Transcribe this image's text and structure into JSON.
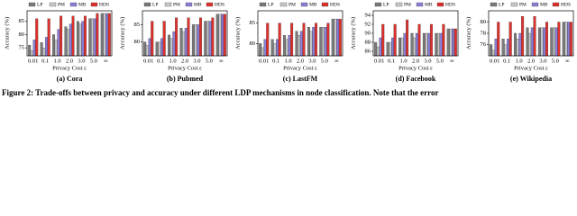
{
  "chart_data": [
    {
      "type": "bar",
      "subtitle": "(a) Cora",
      "ylabel": "Accuracy (%)",
      "xlabel": "Privacy Cost ε",
      "categories": [
        "0.01",
        "0.1",
        "1.0",
        "2.0",
        "3.0",
        "5.0",
        "∞"
      ],
      "series": [
        {
          "name": "LP",
          "color": "#7a7a7a",
          "values": [
            76,
            77,
            80,
            83,
            85,
            86,
            88
          ]
        },
        {
          "name": "PM",
          "color": "#c8c8c8",
          "values": [
            74,
            75,
            78,
            82,
            84,
            86,
            88
          ]
        },
        {
          "name": "MB",
          "color": "#8a7fd8",
          "values": [
            78,
            79,
            82,
            84,
            85,
            86,
            88
          ]
        },
        {
          "name": "HDS",
          "color": "#e0302c",
          "values": [
            86,
            86,
            87,
            87,
            87,
            88,
            88
          ]
        }
      ],
      "ylim": [
        72,
        89
      ],
      "yticks": [
        75,
        80,
        85
      ]
    },
    {
      "type": "bar",
      "subtitle": "(b) Pubmed",
      "ylabel": "Accuracy (%)",
      "xlabel": "Privacy Cost ε",
      "categories": [
        "0.01",
        "0.1",
        "1.0",
        "2.0",
        "3.0",
        "5.0",
        "∞"
      ],
      "series": [
        {
          "name": "LP",
          "color": "#7a7a7a",
          "values": [
            80,
            80,
            82,
            84,
            85,
            86,
            88
          ]
        },
        {
          "name": "PM",
          "color": "#c8c8c8",
          "values": [
            79,
            80,
            81,
            83,
            85,
            86,
            88
          ]
        },
        {
          "name": "MB",
          "color": "#8a7fd8",
          "values": [
            81,
            81,
            83,
            84,
            85,
            86,
            88
          ]
        },
        {
          "name": "HDS",
          "color": "#e0302c",
          "values": [
            86,
            86,
            87,
            87,
            87,
            87,
            88
          ]
        }
      ],
      "ylim": [
        76,
        89
      ],
      "yticks": [
        80,
        85
      ]
    },
    {
      "type": "bar",
      "subtitle": "(c) LastFM",
      "ylabel": "Accuracy (%)",
      "xlabel": "Privacy Cost ε",
      "categories": [
        "0.01",
        "0.1",
        "1.0",
        "2.0",
        "3.0",
        "5.0",
        "∞"
      ],
      "series": [
        {
          "name": "LP",
          "color": "#7a7a7a",
          "values": [
            80,
            81,
            82,
            83,
            84,
            84,
            86
          ]
        },
        {
          "name": "PM",
          "color": "#c8c8c8",
          "values": [
            79,
            80,
            81,
            82,
            83,
            84,
            86
          ]
        },
        {
          "name": "MB",
          "color": "#8a7fd8",
          "values": [
            81,
            81,
            82,
            83,
            84,
            84,
            86
          ]
        },
        {
          "name": "HDS",
          "color": "#e0302c",
          "values": [
            85,
            85,
            85,
            85,
            85,
            85,
            86
          ]
        }
      ],
      "ylim": [
        77,
        88
      ],
      "yticks": [
        80,
        85
      ]
    },
    {
      "type": "bar",
      "subtitle": "(d) Facebook",
      "ylabel": "Accuracy (%)",
      "xlabel": "Privacy Cost ε",
      "categories": [
        "0.01",
        "0.1",
        "1.0",
        "2.0",
        "3.0",
        "5.0",
        "∞"
      ],
      "series": [
        {
          "name": "LP",
          "color": "#7a7a7a",
          "values": [
            88,
            88,
            89,
            90,
            90,
            90,
            91
          ]
        },
        {
          "name": "PM",
          "color": "#c8c8c8",
          "values": [
            87,
            88,
            89,
            89,
            90,
            90,
            91
          ]
        },
        {
          "name": "MB",
          "color": "#8a7fd8",
          "values": [
            89,
            89,
            90,
            90,
            90,
            90,
            91
          ]
        },
        {
          "name": "HDS",
          "color": "#e0302c",
          "values": [
            92,
            92,
            93,
            92,
            92,
            92,
            91
          ]
        }
      ],
      "ylim": [
        85,
        95
      ],
      "yticks": [
        86,
        88,
        90,
        92,
        94
      ]
    },
    {
      "type": "bar",
      "subtitle": "(e) Wikipedia",
      "ylabel": "Accuracy (%)",
      "xlabel": "Privacy Cost ε",
      "categories": [
        "0.01",
        "0.1",
        "1.0",
        "2.0",
        "3.0",
        "5.0",
        "∞"
      ],
      "series": [
        {
          "name": "LP",
          "color": "#7a7a7a",
          "values": [
            76,
            77,
            78,
            79,
            79,
            79,
            80
          ]
        },
        {
          "name": "PM",
          "color": "#c8c8c8",
          "values": [
            75,
            76,
            77,
            78,
            79,
            79,
            80
          ]
        },
        {
          "name": "MB",
          "color": "#8a7fd8",
          "values": [
            77,
            77,
            78,
            79,
            79,
            79,
            80
          ]
        },
        {
          "name": "HDS",
          "color": "#e0302c",
          "values": [
            80,
            80,
            81,
            81,
            80,
            80,
            80
          ]
        }
      ],
      "ylim": [
        74,
        82
      ],
      "yticks": [
        76,
        78,
        80
      ]
    }
  ],
  "caption": "Figure 2: Trade-offs between privacy and accuracy under different LDP mechanisms in node classification. Note that the error"
}
